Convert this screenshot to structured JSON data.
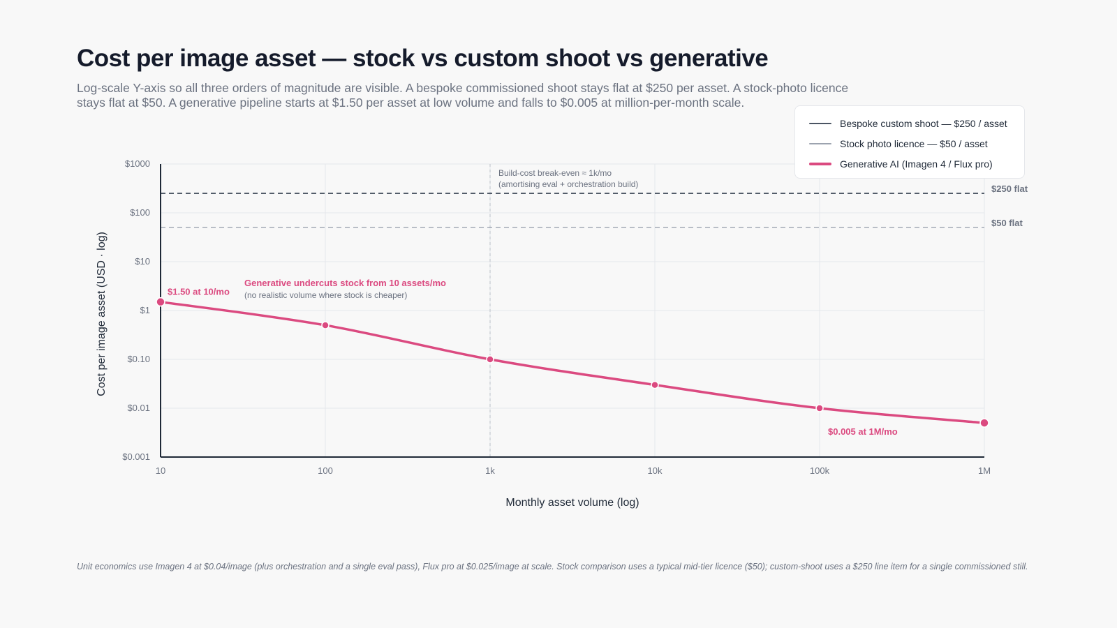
{
  "title": "Cost per image asset — stock vs custom shoot vs generative",
  "subtitle": "Log-scale Y-axis so all three orders of magnitude are visible. A bespoke commissioned shoot stays flat at $250 per asset. A stock-photo licence stays flat at $50. A generative pipeline starts at $1.50 per asset at low volume and falls to $0.005 at million-per-month scale.",
  "footnote": "Unit economics use Imagen 4 at $0.04/image (plus orchestration and a single eval pass), Flux pro at $0.025/image at scale. Stock comparison uses a typical mid-tier licence ($50); custom-shoot uses a $250 line item for a single commissioned still.",
  "colors": {
    "bespoke": "#4b5563",
    "stock": "#9ca3af",
    "generative": "#db4a80",
    "axis": "#1f2937",
    "grid": "#e5e7eb"
  },
  "chart_data": {
    "type": "line",
    "xlabel": "Monthly asset volume (log)",
    "ylabel": "Cost per image asset (USD · log)",
    "x_scale": "log",
    "y_scale": "log",
    "xlim": [
      10,
      1000000
    ],
    "ylim": [
      0.001,
      1000
    ],
    "grid": true,
    "legend_position": "top-right",
    "x_ticks": [
      {
        "value": 10,
        "label": "10"
      },
      {
        "value": 100,
        "label": "100"
      },
      {
        "value": 1000,
        "label": "1k"
      },
      {
        "value": 10000,
        "label": "10k"
      },
      {
        "value": 100000,
        "label": "100k"
      },
      {
        "value": 1000000,
        "label": "1M"
      }
    ],
    "y_ticks": [
      {
        "value": 1000,
        "label": "$1000"
      },
      {
        "value": 100,
        "label": "$100"
      },
      {
        "value": 10,
        "label": "$10"
      },
      {
        "value": 1,
        "label": "$1"
      },
      {
        "value": 0.1,
        "label": "$0.10"
      },
      {
        "value": 0.01,
        "label": "$0.01"
      },
      {
        "value": 0.001,
        "label": "$0.001"
      }
    ],
    "series": [
      {
        "key": "bespoke",
        "name": "Bespoke custom shoot — $250 / asset",
        "style": "dashed",
        "x": [
          10,
          1000000
        ],
        "y": [
          250,
          250
        ],
        "end_label": "$250 flat"
      },
      {
        "key": "stock",
        "name": "Stock photo licence — $50 / asset",
        "style": "dashed",
        "x": [
          10,
          1000000
        ],
        "y": [
          50,
          50
        ],
        "end_label": "$50 flat"
      },
      {
        "key": "generative",
        "name": "Generative AI (Imagen 4 / Flux pro)",
        "style": "solid",
        "x": [
          10,
          100,
          1000,
          10000,
          100000,
          1000000
        ],
        "y": [
          1.5,
          0.5,
          0.1,
          0.03,
          0.01,
          0.005
        ]
      }
    ],
    "annotations": {
      "breakeven_x": 1000,
      "breakeven_line1": "Build-cost break-even ≈ 1k/mo",
      "breakeven_line2": "(amortising eval + orchestration build)",
      "start_label": "$1.50 at 10/mo",
      "end_label": "$0.005 at 1M/mo",
      "undercut_title": "Generative undercuts stock from 10 assets/mo",
      "undercut_note": "(no realistic volume where stock is cheaper)"
    }
  }
}
